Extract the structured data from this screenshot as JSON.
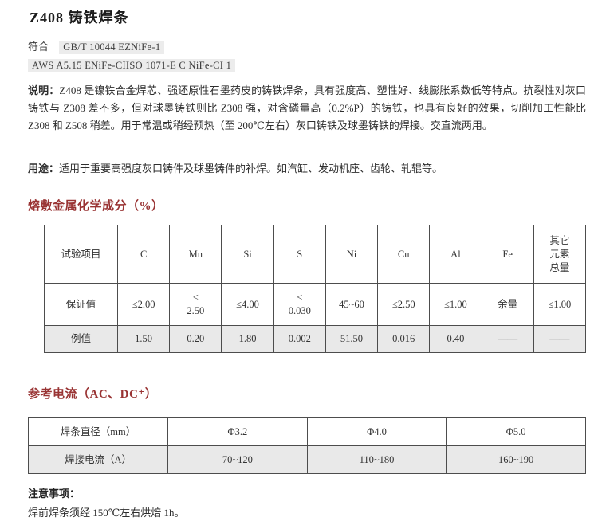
{
  "page": {
    "title": "Z408 铸铁焊条",
    "conform": {
      "label": "符合",
      "standard_gb": "GB/T 10044 EZNiFe-1",
      "standard_aws": "AWS A5.15 ENiFe-CIISO 1071-E C NiFe-CI 1"
    },
    "description": {
      "label": "说明：",
      "text": "Z408 是镍铁合金焊芯、强还原性石墨药皮的铸铁焊条，具有强度高、塑性好、线膨胀系数低等特点。抗裂性对灰口铸铁与 Z308 差不多，但对球墨铸铁则比 Z308 强，对含磷量高（0.2%P）的铸铁，也具有良好的效果，切削加工性能比 Z308 和 Z508 稍差。用于常温或稍经预热（至 200℃左右）灰口铸铁及球墨铸铁的焊接。交直流两用。"
    },
    "usage": {
      "label": "用途：",
      "text": "适用于重要高强度灰口铸件及球墨铸件的补焊。如汽缸、发动机座、齿轮、轧辊等。"
    },
    "notes": {
      "label": "注意事项：",
      "text": "焊前焊条须经 150℃左右烘焙 1h。"
    }
  },
  "composition": {
    "heading": "熔敷金属化学成分（%）",
    "headers": [
      "试验项目",
      "C",
      "Mn",
      "Si",
      "S",
      "Ni",
      "Cu",
      "Al",
      "Fe",
      "其它\n元素\n总量"
    ],
    "rows": [
      {
        "label": "保证值",
        "values": [
          "≤2.00",
          "≤\n2.50",
          "≤4.00",
          "≤\n0.030",
          "45~60",
          "≤2.50",
          "≤1.00",
          "余量",
          "≤1.00"
        ]
      },
      {
        "label": "例值",
        "values": [
          "1.50",
          "0.20",
          "1.80",
          "0.002",
          "51.50",
          "0.016",
          "0.40",
          "——",
          "——"
        ]
      }
    ]
  },
  "current": {
    "heading": "参考电流（AC、DC⁺）",
    "rows": [
      {
        "label": "焊条直径（mm）",
        "values": [
          "Φ3.2",
          "Φ4.0",
          "Φ5.0"
        ]
      },
      {
        "label": "焊接电流（A）",
        "values": [
          "70~120",
          "110~180",
          "160~190"
        ]
      }
    ]
  },
  "colors": {
    "heading": "#993333",
    "highlight_bg": "#ececec",
    "row_alt_bg": "#e9e9e9",
    "table_border": "#4d4d4d"
  }
}
